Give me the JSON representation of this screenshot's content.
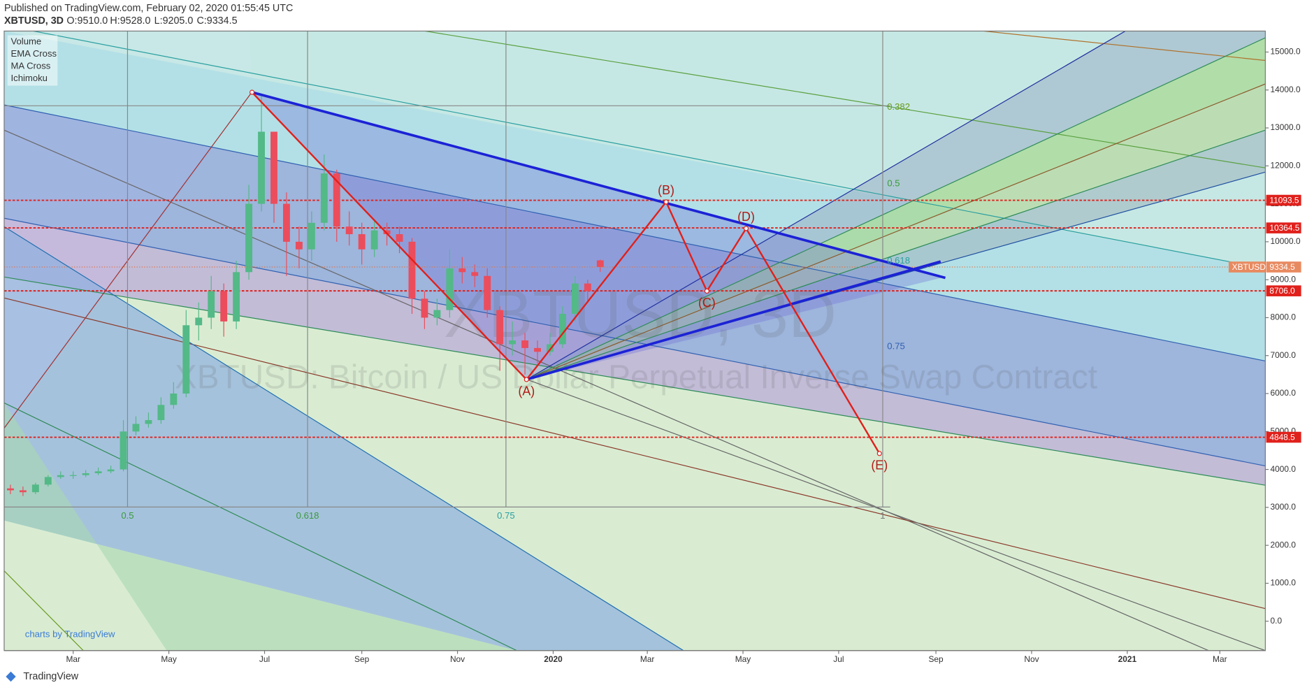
{
  "chart_data": {
    "type": "candlestick",
    "header": {
      "published": "Published on TradingView.com, February 02, 2020 01:55:45 UTC",
      "symbol": "XBTUSD, 3D",
      "open": "O:9510.0",
      "high": "H:9528.0",
      "low": "L:9205.0",
      "close": "C:9334.5"
    },
    "indicators": [
      "Volume",
      "EMA Cross",
      "MA Cross",
      "Ichimoku"
    ],
    "watermark": "XBTUSD, 3D",
    "watermark_subtitle": "XBTUSD: Bitcoin / US Dollar Perpetual Inverse Swap Contract",
    "branding": "charts by TradingView",
    "footer": "TradingView",
    "symbol_tag": "XBTUSD",
    "last_price": 9334.5,
    "levels": [
      11093.5,
      10364.5,
      {
        "value": 8706,
        "label": "8706.0"
      },
      4848.5
    ],
    "xlim": [
      -44,
      760
    ],
    "ylim": [
      -774,
      15553
    ],
    "xticks": [
      {
        "value": 0,
        "label": "Mar"
      },
      {
        "value": 61,
        "label": "May"
      },
      {
        "value": 122,
        "label": "Jul"
      },
      {
        "value": 184,
        "label": "Sep"
      },
      {
        "value": 245,
        "label": "Nov"
      },
      {
        "value": 306,
        "label": "2020"
      },
      {
        "value": 366,
        "label": "Mar"
      },
      {
        "value": 427,
        "label": "May"
      },
      {
        "value": 488,
        "label": "Jul"
      },
      {
        "value": 550,
        "label": "Sep"
      },
      {
        "value": 611,
        "label": "Nov"
      },
      {
        "value": 672,
        "label": "2021"
      },
      {
        "value": 731,
        "label": "Mar"
      }
    ],
    "yticks": [
      {
        "value": 0,
        "label": "0.0"
      },
      {
        "value": 1000,
        "label": "1000.0"
      },
      {
        "value": 2000,
        "label": "2000.0"
      },
      {
        "value": 3000,
        "label": "3000.0"
      },
      {
        "value": 4000,
        "label": "4000.0"
      },
      {
        "value": 5000,
        "label": "5000.0"
      },
      {
        "value": 6000,
        "label": "6000.0"
      },
      {
        "value": 7000,
        "label": "7000.0"
      },
      {
        "value": 8000,
        "label": "8000.0"
      },
      {
        "value": 9000,
        "label": "9000.0"
      },
      {
        "value": 10000,
        "label": "10000.0"
      },
      {
        "value": 11000,
        "label": "11000.0"
      },
      {
        "value": 12000,
        "label": "12000.0"
      },
      {
        "value": 13000,
        "label": "13000.0"
      },
      {
        "value": 14000,
        "label": "14000.0"
      },
      {
        "value": 15000,
        "label": "15000.0"
      }
    ],
    "up_color": "#53b987",
    "down_color": "#eb4d5c",
    "x": [
      -40,
      -32,
      -24,
      -16,
      -8,
      0,
      8,
      16,
      24,
      32,
      40,
      48,
      56,
      64,
      72,
      80,
      88,
      96,
      104,
      112,
      120,
      128,
      136,
      144,
      152,
      160,
      168,
      176,
      184,
      192,
      200,
      208,
      216,
      224,
      232,
      240,
      248,
      256,
      264,
      272,
      280,
      288,
      296,
      304,
      312,
      320,
      328,
      336
    ],
    "open": [
      3500,
      3450,
      3400,
      3600,
      3800,
      3850,
      3850,
      3900,
      3950,
      4000,
      5000,
      5200,
      5300,
      5700,
      6000,
      7800,
      8000,
      8700,
      7900,
      9200,
      11000,
      12900,
      11000,
      10000,
      9800,
      10500,
      11800,
      10400,
      10200,
      9800,
      10300,
      10200,
      10000,
      8500,
      8000,
      8200,
      9300,
      9200,
      9100,
      8200,
      7300,
      7400,
      7200,
      7100,
      7300,
      8100,
      8900,
      9510
    ],
    "high": [
      3600,
      3550,
      3650,
      3850,
      3950,
      3950,
      3980,
      4050,
      4100,
      5300,
      5400,
      5500,
      5900,
      6300,
      8200,
      8400,
      9100,
      8900,
      9500,
      11500,
      13900,
      12900,
      11300,
      10400,
      10800,
      12300,
      11900,
      10800,
      10500,
      10600,
      10500,
      10400,
      10100,
      8700,
      8500,
      9800,
      9600,
      9400,
      9300,
      8300,
      7900,
      7600,
      7400,
      7600,
      8300,
      9100,
      9000,
      9528
    ],
    "low": [
      3350,
      3300,
      3350,
      3550,
      3750,
      3750,
      3800,
      3850,
      3900,
      3950,
      4900,
      5100,
      5200,
      5600,
      5900,
      7400,
      7700,
      7500,
      7700,
      9000,
      10800,
      10500,
      9100,
      9300,
      9500,
      10300,
      10000,
      9900,
      9400,
      9600,
      9900,
      9700,
      8100,
      7700,
      7800,
      8000,
      8900,
      8800,
      8000,
      6600,
      7000,
      6500,
      6800,
      7000,
      7200,
      7900,
      8400,
      9205
    ],
    "close": [
      3450,
      3400,
      3600,
      3800,
      3850,
      3850,
      3900,
      3950,
      4000,
      5000,
      5200,
      5300,
      5700,
      6000,
      7800,
      8000,
      8700,
      7900,
      9200,
      11000,
      12900,
      11000,
      10000,
      9800,
      10500,
      11800,
      10400,
      10200,
      9800,
      10300,
      10200,
      10000,
      8500,
      8000,
      8200,
      9300,
      9200,
      9100,
      8200,
      7300,
      7400,
      7200,
      7100,
      7300,
      8100,
      8900,
      8700,
      9334.5
    ],
    "wave": {
      "color": "#e0201b",
      "x": [
        114,
        289,
        378,
        404,
        429,
        514
      ],
      "y": [
        13940,
        6370,
        11050,
        8700,
        10350,
        4420
      ],
      "labels": [
        null,
        "(A)",
        "(B)",
        "(C)",
        "(D)",
        "(E)"
      ]
    },
    "channel": {
      "color": "#1c22d6",
      "upper_x": [
        114,
        556
      ],
      "upper_y": [
        13940,
        9050
      ],
      "lower_x": [
        289,
        553
      ],
      "lower_y": [
        6370,
        9480
      ]
    },
    "fib_fan_labels": [
      "0.382",
      "0.5",
      "0.618",
      "0.75"
    ],
    "fib_time_labels": [
      "0.5",
      "0.618",
      "0.75",
      "1"
    ]
  }
}
